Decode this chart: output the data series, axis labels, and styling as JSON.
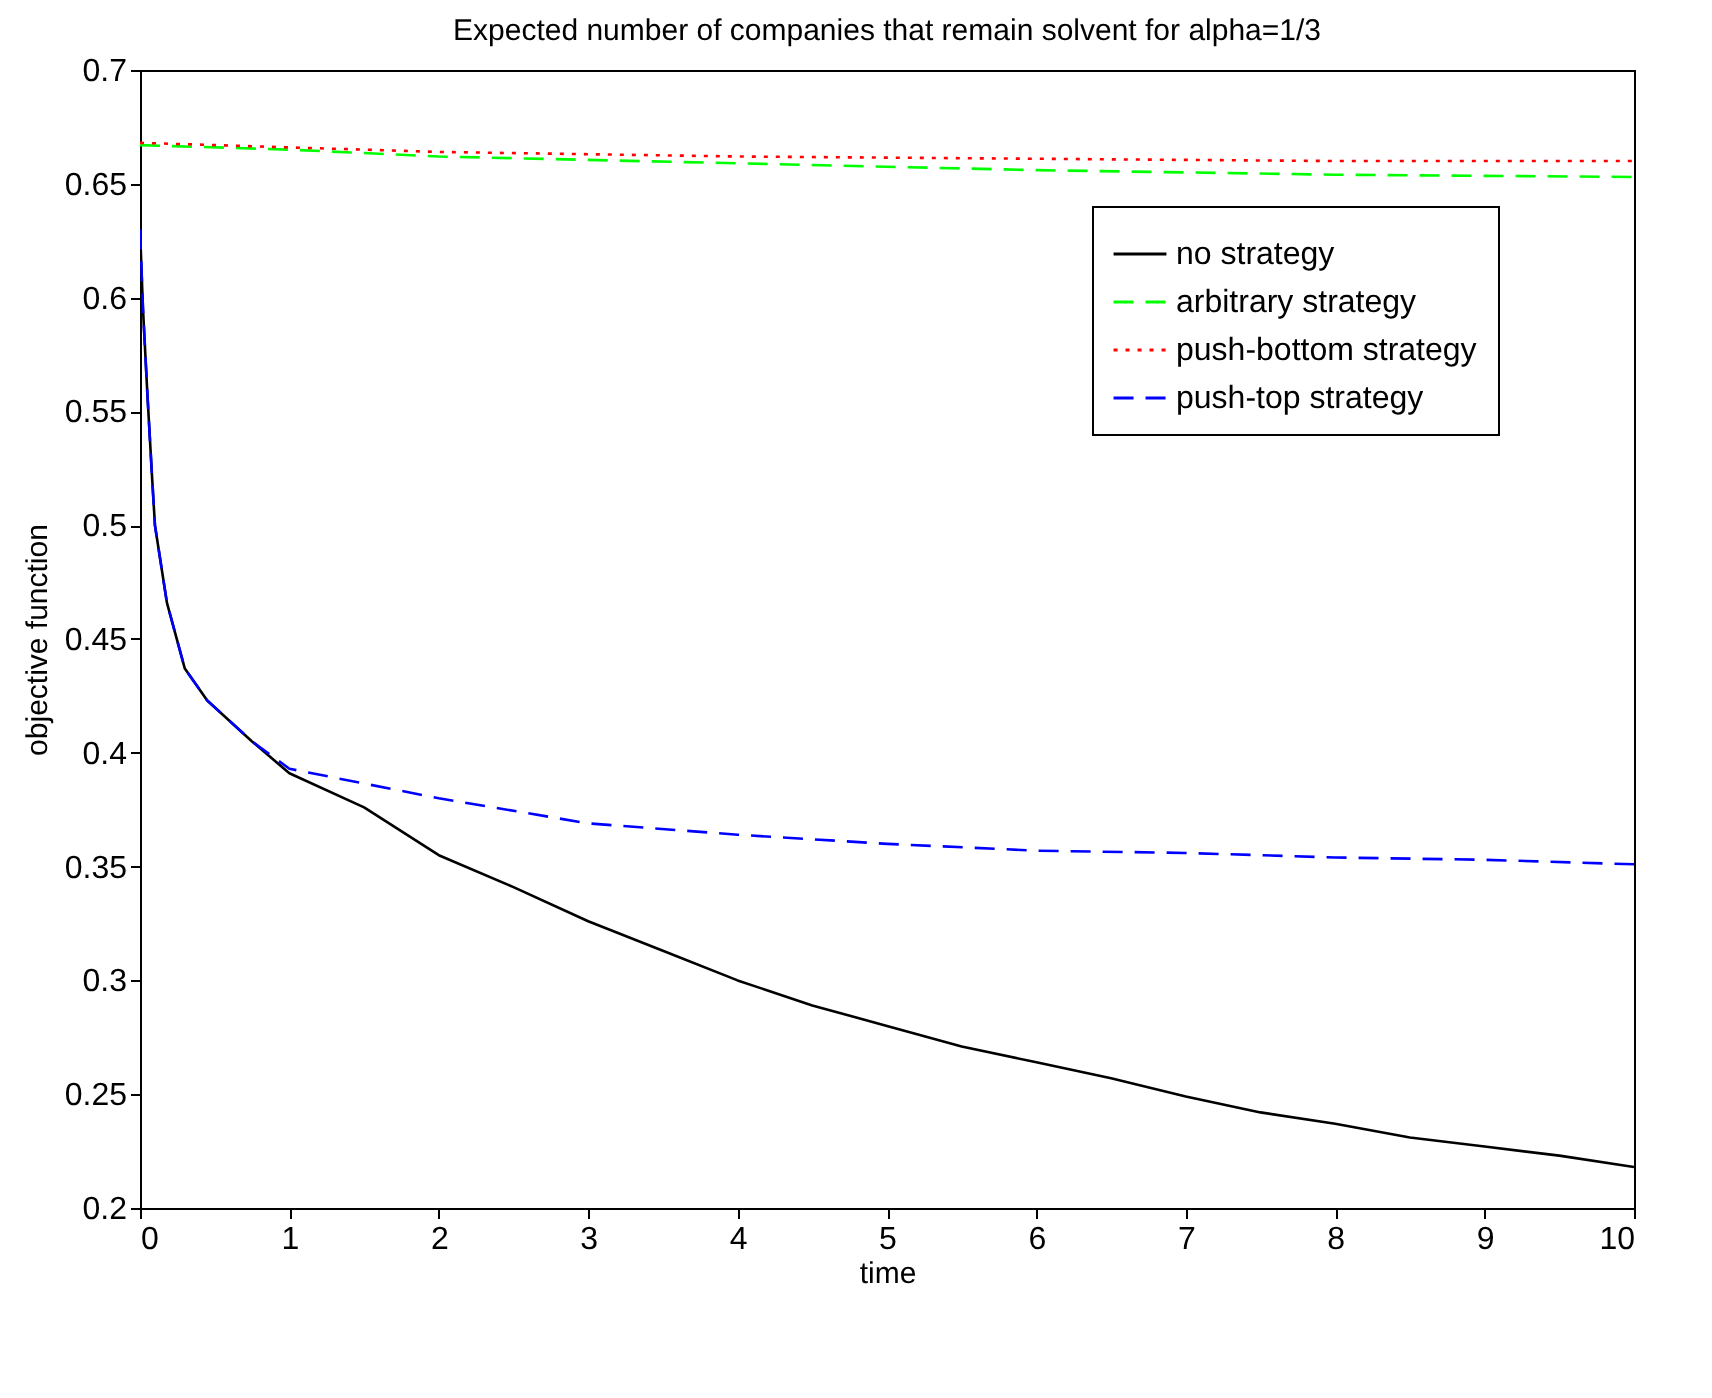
{
  "chart_data": {
    "type": "line",
    "title": "Expected number of companies that remain solvent for alpha=1/3",
    "xlabel": "time",
    "ylabel": "objective function",
    "xlim": [
      0,
      10
    ],
    "ylim": [
      0.2,
      0.7
    ],
    "xticks": [
      0,
      1,
      2,
      3,
      4,
      5,
      6,
      7,
      8,
      9,
      10
    ],
    "yticks": [
      0.2,
      0.25,
      0.3,
      0.35,
      0.4,
      0.45,
      0.5,
      0.55,
      0.6,
      0.65,
      0.7
    ],
    "grid": false,
    "legend": "top right",
    "marker": "none",
    "series": [
      {
        "name": "no strategy",
        "color": "#000000",
        "line_style": "solid",
        "x": [
          0,
          0.02,
          0.05,
          0.08,
          0.1,
          0.18,
          0.3,
          0.45,
          0.75,
          1,
          1.5,
          2,
          2.5,
          3,
          3.5,
          4,
          4.5,
          5,
          5.5,
          6,
          6.5,
          7,
          7.5,
          8,
          8.5,
          9,
          9.5,
          10
        ],
        "values": [
          0.63,
          0.595,
          0.557,
          0.522,
          0.5,
          0.466,
          0.437,
          0.423,
          0.405,
          0.391,
          0.376,
          0.355,
          0.341,
          0.326,
          0.313,
          0.3,
          0.289,
          0.28,
          0.271,
          0.264,
          0.257,
          0.249,
          0.242,
          0.237,
          0.231,
          0.227,
          0.223,
          0.218
        ]
      },
      {
        "name": "arbitrary strategy",
        "color": "#00ff00",
        "line_style": "dashed",
        "x": [
          0,
          1,
          2,
          4,
          6,
          8,
          10
        ],
        "values": [
          0.667,
          0.665,
          0.662,
          0.659,
          0.656,
          0.654,
          0.653
        ]
      },
      {
        "name": "push-bottom strategy",
        "color": "#ff0000",
        "line_style": "dotted",
        "x": [
          0,
          1,
          2,
          4,
          6,
          8,
          10
        ],
        "values": [
          0.668,
          0.666,
          0.664,
          0.662,
          0.661,
          0.66,
          0.66
        ]
      },
      {
        "name": "push-top strategy",
        "color": "#0000ff",
        "line_style": "dashed",
        "x": [
          0,
          0.02,
          0.05,
          0.08,
          0.1,
          0.18,
          0.3,
          0.45,
          0.75,
          1,
          2,
          3,
          4,
          5,
          6,
          7,
          8,
          9,
          10
        ],
        "values": [
          0.63,
          0.595,
          0.557,
          0.522,
          0.5,
          0.466,
          0.437,
          0.423,
          0.405,
          0.393,
          0.38,
          0.369,
          0.364,
          0.36,
          0.357,
          0.356,
          0.354,
          0.353,
          0.351
        ]
      }
    ]
  }
}
